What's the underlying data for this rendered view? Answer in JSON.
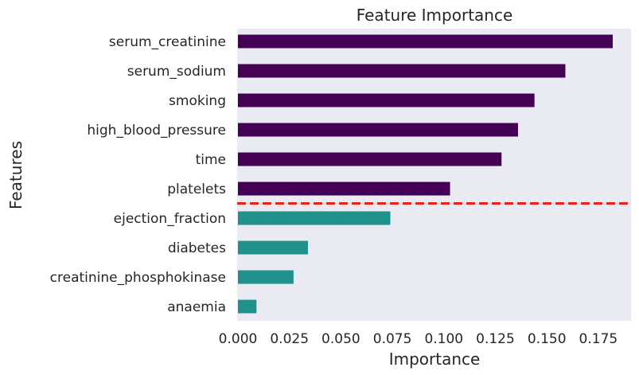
{
  "chart_data": {
    "type": "bar",
    "orientation": "horizontal",
    "title": "Feature Importance",
    "xlabel": "Importance",
    "ylabel": "Features",
    "categories": [
      "serum_creatinine",
      "serum_sodium",
      "smoking",
      "high_blood_pressure",
      "time",
      "platelets",
      "ejection_fraction",
      "diabetes",
      "creatinine_phosphokinase",
      "anaemia"
    ],
    "values": [
      0.182,
      0.159,
      0.144,
      0.136,
      0.128,
      0.103,
      0.074,
      0.034,
      0.027,
      0.009
    ],
    "xlim": [
      0,
      0.19
    ],
    "xticks": [
      0.0,
      0.025,
      0.05,
      0.075,
      0.1,
      0.125,
      0.15,
      0.175
    ],
    "xtick_labels": [
      "0.000",
      "0.025",
      "0.050",
      "0.075",
      "0.100",
      "0.125",
      "0.150",
      "0.175"
    ],
    "threshold_after_index": 5,
    "colors": {
      "top_group": "#440154",
      "bottom_group": "#21918c",
      "threshold_line": "#e8211c",
      "plot_background": "#eaeaf2"
    },
    "grid": false,
    "legend": "none"
  }
}
